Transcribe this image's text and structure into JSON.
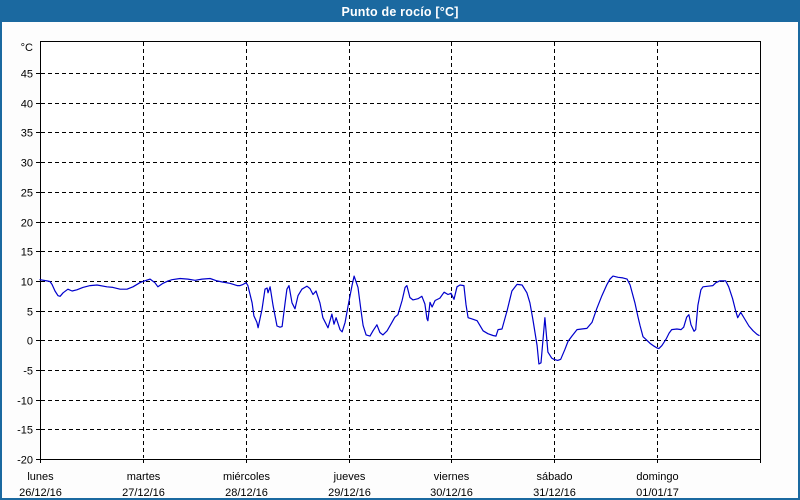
{
  "window": {
    "title": "Punto de rocío [°C]",
    "titlebar_color": "#1b69a0",
    "border_color": "#1b69a0",
    "background_color": "#fdfdfd"
  },
  "chart_data": {
    "type": "line",
    "title": "Punto de rocío [°C]",
    "ylabel": "°C",
    "xlabel": "",
    "legend": "none",
    "grid": "dashed black on white",
    "line_color": "#0000cc",
    "axis_color": "#000000",
    "ylim": [
      -20,
      50.4
    ],
    "yticks": [
      45,
      40,
      35,
      30,
      25,
      20,
      15,
      10,
      5,
      0,
      -5,
      -10,
      -15,
      -20
    ],
    "x_total_hours": 168,
    "x_days": [
      {
        "name": "lunes",
        "date": "26/12/16"
      },
      {
        "name": "martes",
        "date": "27/12/16"
      },
      {
        "name": "miércoles",
        "date": "28/12/16"
      },
      {
        "name": "jueves",
        "date": "29/12/16"
      },
      {
        "name": "viernes",
        "date": "30/12/16"
      },
      {
        "name": "sábado",
        "date": "31/12/16"
      },
      {
        "name": "domingo",
        "date": "01/01/17"
      }
    ],
    "points_units": "[hours since 26/12/16 00:00, dew point °C]",
    "points": [
      [
        0,
        10.2
      ],
      [
        1.6,
        10.0
      ],
      [
        2.3,
        9.9
      ],
      [
        2.8,
        9.4
      ],
      [
        3.5,
        8.3
      ],
      [
        4.2,
        7.5
      ],
      [
        4.7,
        7.4
      ],
      [
        5.4,
        8.0
      ],
      [
        6.5,
        8.6
      ],
      [
        7.5,
        8.3
      ],
      [
        8.6,
        8.5
      ],
      [
        10,
        8.9
      ],
      [
        11.7,
        9.2
      ],
      [
        13.3,
        9.3
      ],
      [
        15.6,
        9.0
      ],
      [
        17,
        8.9
      ],
      [
        18.7,
        8.6
      ],
      [
        20.3,
        8.6
      ],
      [
        21.7,
        9.0
      ],
      [
        23.3,
        9.7
      ],
      [
        24,
        9.9
      ],
      [
        25.7,
        10.3
      ],
      [
        26.8,
        9.7
      ],
      [
        27.5,
        9.0
      ],
      [
        28.7,
        9.6
      ],
      [
        29.9,
        10.0
      ],
      [
        30.8,
        10.2
      ],
      [
        32.7,
        10.4
      ],
      [
        34.5,
        10.3
      ],
      [
        36.2,
        10.1
      ],
      [
        37.8,
        10.3
      ],
      [
        39.7,
        10.4
      ],
      [
        41.3,
        10.0
      ],
      [
        42.7,
        9.8
      ],
      [
        44.3,
        9.6
      ],
      [
        46,
        9.2
      ],
      [
        46.7,
        9.2
      ],
      [
        47.4,
        9.4
      ],
      [
        48.1,
        9.7
      ],
      [
        48.5,
        9.2
      ],
      [
        49.5,
        6.3
      ],
      [
        49.9,
        4.1
      ],
      [
        50.6,
        3.0
      ],
      [
        50.9,
        2.1
      ],
      [
        51.8,
        5.2
      ],
      [
        52.5,
        8.6
      ],
      [
        53,
        8.8
      ],
      [
        53.2,
        8.0
      ],
      [
        53.7,
        9.0
      ],
      [
        54.4,
        5.8
      ],
      [
        55.3,
        2.4
      ],
      [
        56,
        2.2
      ],
      [
        56.5,
        2.3
      ],
      [
        57.2,
        6.3
      ],
      [
        57.6,
        8.6
      ],
      [
        58.1,
        9.2
      ],
      [
        58.8,
        6.3
      ],
      [
        59.5,
        5.3
      ],
      [
        60.2,
        7.5
      ],
      [
        61.1,
        8.6
      ],
      [
        61.8,
        8.9
      ],
      [
        62.3,
        9.1
      ],
      [
        63,
        8.7
      ],
      [
        63.7,
        7.7
      ],
      [
        64.4,
        8.3
      ],
      [
        65.3,
        6.3
      ],
      [
        66,
        3.8
      ],
      [
        67,
        2.4
      ],
      [
        67.2,
        2.1
      ],
      [
        68.1,
        4.4
      ],
      [
        68.6,
        2.7
      ],
      [
        69.1,
        3.8
      ],
      [
        70,
        1.8
      ],
      [
        70.5,
        1.4
      ],
      [
        71.2,
        3.0
      ],
      [
        71.9,
        5.8
      ],
      [
        72.8,
        9.2
      ],
      [
        73.3,
        10.8
      ],
      [
        74.2,
        8.9
      ],
      [
        74.9,
        5.0
      ],
      [
        75.4,
        2.5
      ],
      [
        76.1,
        0.9
      ],
      [
        77,
        0.7
      ],
      [
        77.7,
        1.6
      ],
      [
        78.6,
        2.6
      ],
      [
        79.3,
        1.3
      ],
      [
        80,
        0.9
      ],
      [
        81,
        1.6
      ],
      [
        82.1,
        3.0
      ],
      [
        82.8,
        3.9
      ],
      [
        83.5,
        4.3
      ],
      [
        84.5,
        6.7
      ],
      [
        85.2,
        8.9
      ],
      [
        85.6,
        9.2
      ],
      [
        86.3,
        7.2
      ],
      [
        87,
        6.8
      ],
      [
        88.2,
        7.0
      ],
      [
        89.1,
        7.4
      ],
      [
        89.8,
        6.1
      ],
      [
        90.3,
        3.6
      ],
      [
        90.5,
        3.3
      ],
      [
        91,
        6.4
      ],
      [
        91.5,
        5.6
      ],
      [
        92.2,
        6.7
      ],
      [
        93.3,
        7.1
      ],
      [
        94.3,
        8.1
      ],
      [
        95.2,
        7.7
      ],
      [
        95.9,
        7.9
      ],
      [
        96.6,
        6.9
      ],
      [
        97.3,
        9.0
      ],
      [
        98,
        9.3
      ],
      [
        98.9,
        9.2
      ],
      [
        99.4,
        6.0
      ],
      [
        99.9,
        3.8
      ],
      [
        100.8,
        3.6
      ],
      [
        102,
        3.3
      ],
      [
        103.4,
        1.6
      ],
      [
        104.5,
        1.1
      ],
      [
        105.7,
        0.8
      ],
      [
        106.4,
        0.7
      ],
      [
        106.9,
        1.8
      ],
      [
        107.8,
        1.9
      ],
      [
        109,
        5.0
      ],
      [
        110.1,
        8.3
      ],
      [
        111.3,
        9.4
      ],
      [
        112.5,
        9.3
      ],
      [
        113.6,
        8.0
      ],
      [
        114.3,
        6.3
      ],
      [
        115,
        3.5
      ],
      [
        116,
        -0.9
      ],
      [
        116.4,
        -4.0
      ],
      [
        116.9,
        -3.8
      ],
      [
        117.8,
        3.8
      ],
      [
        118.5,
        -2.0
      ],
      [
        119.4,
        -3.0
      ],
      [
        119.9,
        -3.2
      ],
      [
        120.8,
        -3.4
      ],
      [
        121.5,
        -3.2
      ],
      [
        122.5,
        -1.5
      ],
      [
        123.2,
        -0.2
      ],
      [
        124.1,
        0.7
      ],
      [
        125.3,
        1.8
      ],
      [
        126.4,
        1.9
      ],
      [
        127.6,
        2.0
      ],
      [
        128.8,
        3.0
      ],
      [
        129.9,
        5.3
      ],
      [
        131.1,
        7.5
      ],
      [
        132.3,
        9.4
      ],
      [
        133,
        10.3
      ],
      [
        133.7,
        10.8
      ],
      [
        134.9,
        10.6
      ],
      [
        136,
        10.5
      ],
      [
        137,
        10.3
      ],
      [
        137.7,
        9.3
      ],
      [
        138.8,
        6.3
      ],
      [
        139.5,
        4.0
      ],
      [
        140,
        2.5
      ],
      [
        140.7,
        0.6
      ],
      [
        141.6,
        0.0
      ],
      [
        142.3,
        -0.5
      ],
      [
        143.3,
        -1.0
      ],
      [
        144,
        -1.3
      ],
      [
        144.4,
        -1.4
      ],
      [
        145.1,
        -0.9
      ],
      [
        146.1,
        0.2
      ],
      [
        146.8,
        1.2
      ],
      [
        147.4,
        1.8
      ],
      [
        148.6,
        1.9
      ],
      [
        149.6,
        1.8
      ],
      [
        150.2,
        2.2
      ],
      [
        150.9,
        3.9
      ],
      [
        151.4,
        4.3
      ],
      [
        151.9,
        2.6
      ],
      [
        152.6,
        1.5
      ],
      [
        153,
        1.8
      ],
      [
        153.5,
        5.9
      ],
      [
        154.2,
        8.5
      ],
      [
        154.7,
        9.0
      ],
      [
        155.9,
        9.1
      ],
      [
        157,
        9.2
      ],
      [
        157.7,
        9.7
      ],
      [
        158.6,
        10.0
      ],
      [
        160,
        10.0
      ],
      [
        160.7,
        9.0
      ],
      [
        161.6,
        7.0
      ],
      [
        162.3,
        5.0
      ],
      [
        162.8,
        3.8
      ],
      [
        163.5,
        4.7
      ],
      [
        164.5,
        3.5
      ],
      [
        165.4,
        2.4
      ],
      [
        166.4,
        1.6
      ],
      [
        167.3,
        1.0
      ],
      [
        167.8,
        0.8
      ]
    ]
  }
}
